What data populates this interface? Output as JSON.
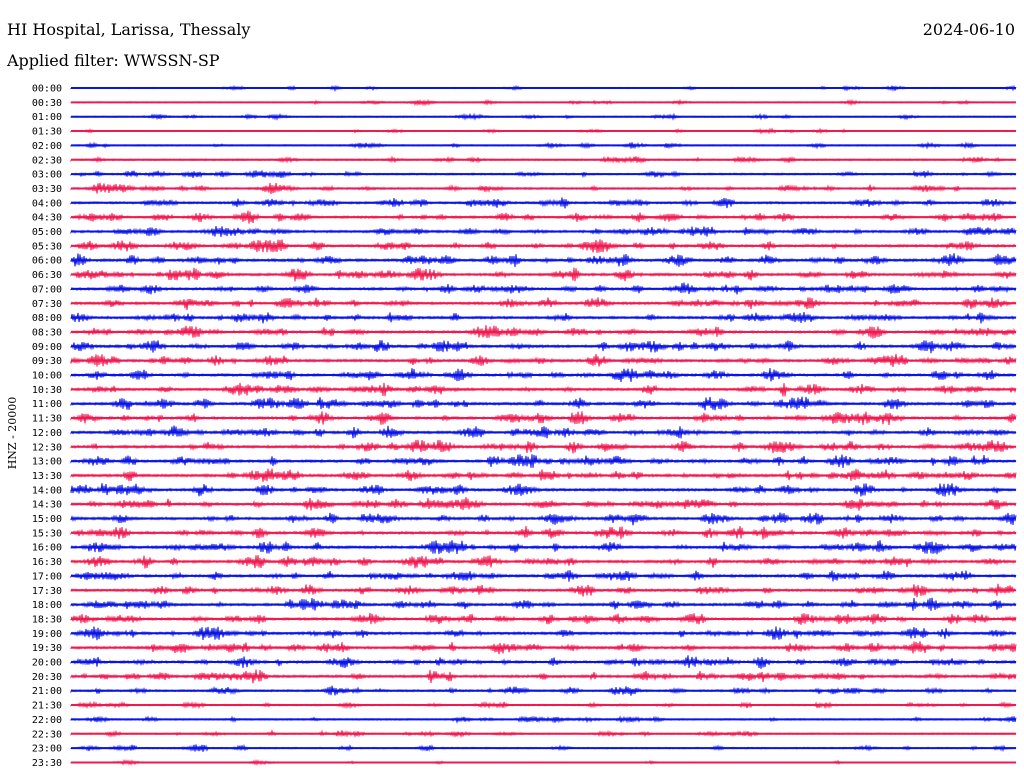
{
  "header": {
    "station": "HI Hospital, Larissa, Thessaly",
    "date": "2024-06-10",
    "filter": "Applied filter: WWSSN-SP"
  },
  "axis": {
    "ylabel": "HNZ - 20000"
  },
  "colors": {
    "trace_a": "#0a14e6",
    "trace_b": "#f01a50",
    "background": "#ffffff"
  },
  "chart_data": {
    "type": "line",
    "title": "HI Hospital, Larissa, Thessaly",
    "ylabel": "HNZ - 20000",
    "xlabel": "",
    "grid": false,
    "row_labels": [
      "00:00",
      "00:30",
      "01:00",
      "01:30",
      "02:00",
      "02:30",
      "03:00",
      "03:30",
      "04:00",
      "04:30",
      "05:00",
      "05:30",
      "06:00",
      "06:30",
      "07:00",
      "07:30",
      "08:00",
      "08:30",
      "09:00",
      "09:30",
      "10:00",
      "10:30",
      "11:00",
      "11:30",
      "12:00",
      "12:30",
      "13:00",
      "13:30",
      "14:00",
      "14:30",
      "15:00",
      "15:30",
      "16:00",
      "16:30",
      "17:00",
      "17:30",
      "18:00",
      "18:30",
      "19:00",
      "19:30",
      "20:00",
      "20:30",
      "21:00",
      "21:30",
      "22:00",
      "22:30",
      "23:00",
      "23:30"
    ],
    "row_colors": [
      "blue",
      "red",
      "blue",
      "red",
      "blue",
      "red",
      "blue",
      "red",
      "blue",
      "red",
      "blue",
      "red",
      "blue",
      "red",
      "blue",
      "red",
      "blue",
      "red",
      "blue",
      "red",
      "blue",
      "red",
      "blue",
      "red",
      "blue",
      "red",
      "blue",
      "red",
      "blue",
      "red",
      "blue",
      "red",
      "blue",
      "red",
      "blue",
      "red",
      "blue",
      "red",
      "blue",
      "red",
      "blue",
      "red",
      "blue",
      "red",
      "blue",
      "red",
      "blue",
      "red"
    ],
    "activity_level": [
      0.15,
      0.15,
      0.2,
      0.12,
      0.25,
      0.35,
      0.45,
      0.5,
      0.6,
      0.7,
      0.75,
      0.8,
      0.85,
      0.8,
      0.8,
      0.8,
      0.8,
      0.8,
      0.85,
      0.85,
      0.8,
      0.8,
      0.85,
      0.85,
      0.8,
      0.85,
      0.85,
      0.85,
      0.85,
      0.85,
      0.85,
      0.85,
      0.85,
      0.85,
      0.8,
      0.8,
      0.8,
      0.8,
      0.8,
      0.8,
      0.8,
      0.8,
      0.5,
      0.35,
      0.35,
      0.3,
      0.3,
      0.05
    ]
  }
}
